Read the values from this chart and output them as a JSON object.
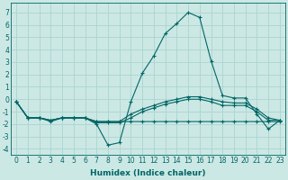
{
  "title": "",
  "xlabel": "Humidex (Indice chaleur)",
  "ylabel": "",
  "background_color": "#cce8e4",
  "grid_color": "#aad4d0",
  "line_color": "#006666",
  "xlim": [
    -0.5,
    23.5
  ],
  "ylim": [
    -4.5,
    7.8
  ],
  "xticks": [
    0,
    1,
    2,
    3,
    4,
    5,
    6,
    7,
    8,
    9,
    10,
    11,
    12,
    13,
    14,
    15,
    16,
    17,
    18,
    19,
    20,
    21,
    22,
    23
  ],
  "yticks": [
    -4,
    -3,
    -2,
    -1,
    0,
    1,
    2,
    3,
    4,
    5,
    6,
    7
  ],
  "lines": [
    {
      "x": [
        0,
        1,
        2,
        3,
        4,
        5,
        6,
        7,
        8,
        9,
        10,
        11,
        12,
        13,
        14,
        15,
        16,
        17,
        18,
        19,
        20,
        21,
        22,
        23
      ],
      "y": [
        -0.2,
        -1.5,
        -1.5,
        -1.8,
        -1.5,
        -1.5,
        -1.5,
        -2.0,
        -3.7,
        -3.5,
        -0.2,
        2.1,
        3.5,
        5.3,
        6.1,
        7.0,
        6.6,
        3.1,
        0.3,
        0.1,
        0.1,
        -1.2,
        -2.4,
        -1.7
      ]
    },
    {
      "x": [
        0,
        1,
        2,
        3,
        4,
        5,
        6,
        7,
        8,
        9,
        10,
        11,
        12,
        13,
        14,
        15,
        16,
        17,
        18,
        19,
        20,
        21,
        22,
        23
      ],
      "y": [
        -0.2,
        -1.5,
        -1.5,
        -1.7,
        -1.5,
        -1.5,
        -1.5,
        -1.8,
        -1.8,
        -1.8,
        -1.8,
        -1.8,
        -1.8,
        -1.8,
        -1.8,
        -1.8,
        -1.8,
        -1.8,
        -1.8,
        -1.8,
        -1.8,
        -1.8,
        -1.8,
        -1.8
      ]
    },
    {
      "x": [
        0,
        1,
        2,
        3,
        4,
        5,
        6,
        7,
        8,
        9,
        10,
        11,
        12,
        13,
        14,
        15,
        16,
        17,
        18,
        19,
        20,
        21,
        22,
        23
      ],
      "y": [
        -0.2,
        -1.5,
        -1.5,
        -1.7,
        -1.5,
        -1.5,
        -1.5,
        -1.8,
        -1.8,
        -1.8,
        -1.2,
        -0.8,
        -0.5,
        -0.2,
        0.0,
        0.2,
        0.2,
        0.0,
        -0.2,
        -0.3,
        -0.3,
        -0.8,
        -1.5,
        -1.7
      ]
    },
    {
      "x": [
        0,
        1,
        2,
        3,
        4,
        5,
        6,
        7,
        8,
        9,
        10,
        11,
        12,
        13,
        14,
        15,
        16,
        17,
        18,
        19,
        20,
        21,
        22,
        23
      ],
      "y": [
        -0.2,
        -1.5,
        -1.5,
        -1.7,
        -1.5,
        -1.5,
        -1.5,
        -1.9,
        -1.9,
        -1.9,
        -1.5,
        -1.0,
        -0.7,
        -0.4,
        -0.2,
        0.0,
        0.0,
        -0.2,
        -0.5,
        -0.5,
        -0.5,
        -1.0,
        -1.7,
        -1.7
      ]
    }
  ],
  "xlabel_fontsize": 6.5,
  "tick_fontsize": 5.5
}
